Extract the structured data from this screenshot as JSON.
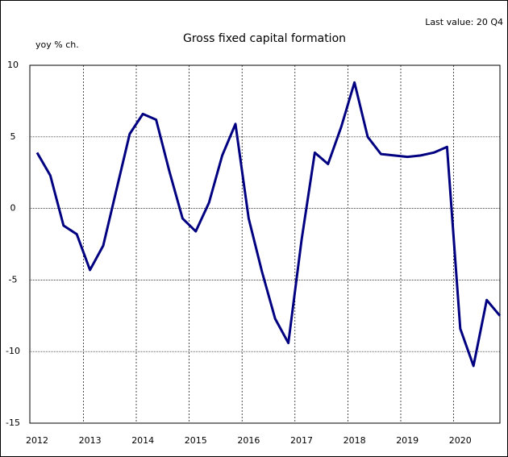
{
  "chart_data": {
    "type": "line",
    "title": "Gross fixed capital formation",
    "subtitle": "Last value: 20 Q4",
    "y_label": "yoy % ch.",
    "categories": [
      "2012",
      null,
      null,
      null,
      "2013",
      null,
      null,
      null,
      "2014",
      null,
      null,
      null,
      "2015",
      null,
      null,
      null,
      "2016",
      null,
      null,
      null,
      "2017",
      null,
      null,
      null,
      "2018",
      null,
      null,
      null,
      "2019",
      null,
      null,
      null,
      "2020",
      null,
      null,
      null
    ],
    "series": [
      {
        "name": "Gross fixed capital formation",
        "color": "#000080",
        "values": [
          3.9,
          2.3,
          -1.2,
          -1.8,
          -4.3,
          -2.6,
          1.3,
          5.2,
          6.6,
          6.2,
          2.6,
          -0.7,
          -1.6,
          0.4,
          3.7,
          5.9,
          -0.7,
          -4.4,
          -7.7,
          -9.4,
          -2.2,
          3.9,
          3.1,
          5.7,
          8.8,
          5.0,
          3.8,
          3.7,
          3.6,
          3.7,
          3.9,
          4.3,
          -8.4,
          -11.0,
          -6.4,
          -7.5
        ]
      }
    ],
    "ylim": [
      -15,
      10
    ],
    "yticks": [
      -15,
      -10,
      -5,
      0,
      5,
      10
    ],
    "grid": true
  }
}
